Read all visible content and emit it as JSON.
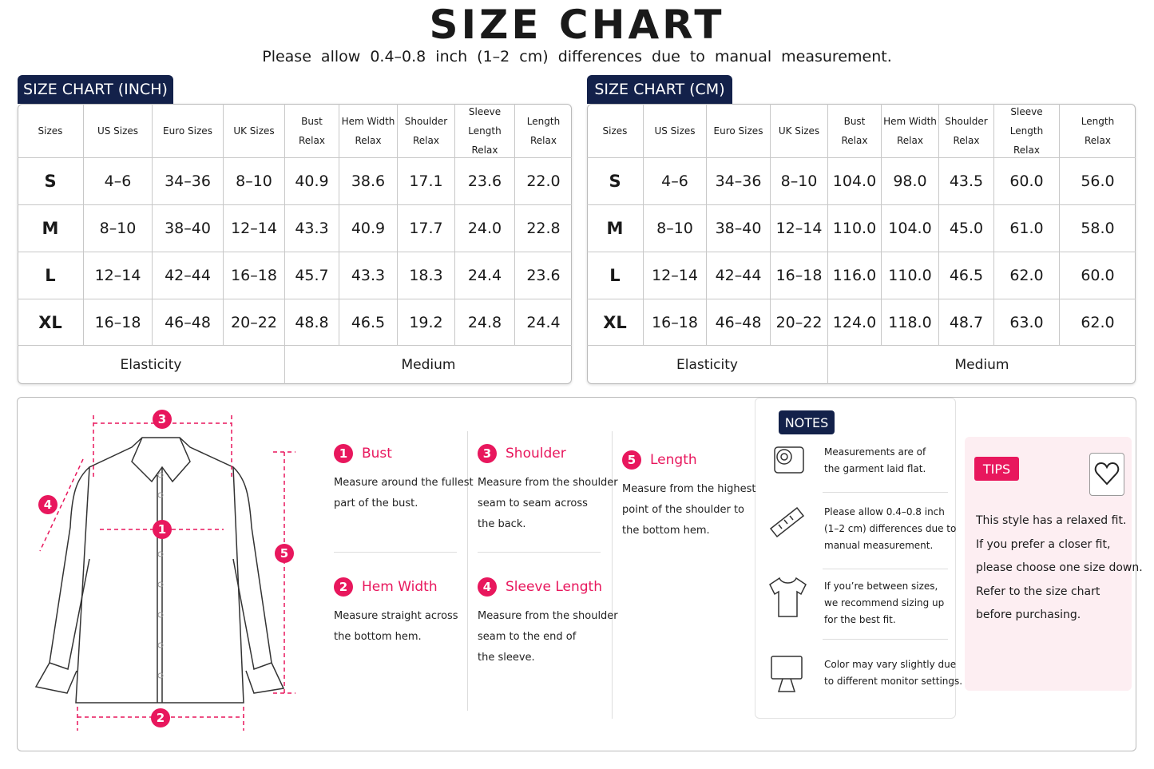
{
  "header": {
    "title": "SIZE CHART",
    "subtitle": "Please allow 0.4–0.8 inch (1–2 cm) differences due to manual measurement."
  },
  "tables": [
    {
      "label": "SIZE CHART (INCH)",
      "columns": [
        [
          "Sizes"
        ],
        [
          "US Sizes"
        ],
        [
          "Euro Sizes"
        ],
        [
          "UK Sizes"
        ],
        [
          "Bust",
          "Relax"
        ],
        [
          "Hem Width",
          "Relax"
        ],
        [
          "Shoulder",
          "Relax"
        ],
        [
          "Sleeve Length",
          "Relax"
        ],
        [
          "Length",
          "Relax"
        ]
      ],
      "rows": [
        [
          "S",
          "4–6",
          "34–36",
          "8–10",
          "40.9",
          "38.6",
          "17.1",
          "23.6",
          "22.0"
        ],
        [
          "M",
          "8–10",
          "38–40",
          "12–14",
          "43.3",
          "40.9",
          "17.7",
          "24.0",
          "22.8"
        ],
        [
          "L",
          "12–14",
          "42–44",
          "16–18",
          "45.7",
          "43.3",
          "18.3",
          "24.4",
          "23.6"
        ],
        [
          "XL",
          "16–18",
          "46–48",
          "20–22",
          "48.8",
          "46.5",
          "19.2",
          "24.8",
          "24.4"
        ]
      ],
      "footer": [
        "Elasticity",
        "Medium"
      ]
    },
    {
      "label": "SIZE CHART (CM)",
      "columns": [
        [
          "Sizes"
        ],
        [
          "US Sizes"
        ],
        [
          "Euro Sizes"
        ],
        [
          "UK Sizes"
        ],
        [
          "Bust",
          "Relax"
        ],
        [
          "Hem Width",
          "Relax"
        ],
        [
          "Shoulder",
          "Relax"
        ],
        [
          "Sleeve Length",
          "Relax"
        ],
        [
          "Length",
          "Relax"
        ]
      ],
      "rows": [
        [
          "S",
          "4–6",
          "34–36",
          "8–10",
          "104.0",
          "98.0",
          "43.5",
          "60.0",
          "56.0"
        ],
        [
          "M",
          "8–10",
          "38–40",
          "12–14",
          "110.0",
          "104.0",
          "45.0",
          "61.0",
          "58.0"
        ],
        [
          "L",
          "12–14",
          "42–44",
          "16–18",
          "116.0",
          "110.0",
          "46.5",
          "62.0",
          "60.0"
        ],
        [
          "XL",
          "16–18",
          "46–48",
          "20–22",
          "124.0",
          "118.0",
          "48.7",
          "63.0",
          "62.0"
        ]
      ],
      "footer": [
        "Elasticity",
        "Medium"
      ]
    }
  ],
  "measurements": [
    {
      "number": "1",
      "title": "Bust",
      "lines": [
        "Measure around the fullest",
        "part of the bust."
      ]
    },
    {
      "number": "2",
      "title": "Hem Width",
      "lines": [
        "Measure straight across",
        "the bottom hem."
      ]
    },
    {
      "number": "3",
      "title": "Shoulder",
      "lines": [
        "Measure from the shoulder",
        "seam to seam across",
        "the back."
      ]
    },
    {
      "number": "4",
      "title": "Sleeve Length",
      "lines": [
        "Measure from the shoulder",
        "seam to the end of",
        "the sleeve."
      ]
    },
    {
      "number": "5",
      "title": "Length",
      "lines": [
        "Measure from the highest",
        "point of the shoulder to",
        "the bottom hem."
      ]
    }
  ],
  "notes": {
    "label": "NOTES",
    "items": [
      [
        "Measurements are of",
        "the garment laid flat."
      ],
      [
        "Please allow 0.4–0.8 inch",
        "(1–2 cm) differences due to",
        "manual measurement."
      ],
      [
        "If you’re between sizes,",
        "we recommend sizing up",
        "for the best fit."
      ],
      [
        "Color may vary slightly due",
        "to different monitor settings."
      ]
    ]
  },
  "tips": {
    "label": "TIPS",
    "lines": [
      "This style has a relaxed fit.",
      "If you prefer a closer fit,",
      "please choose one size down.",
      "Refer to the size chart",
      "before purchasing."
    ]
  }
}
